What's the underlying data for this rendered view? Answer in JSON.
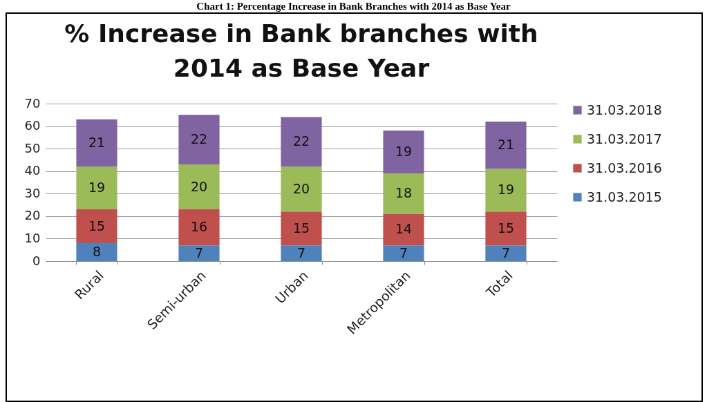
{
  "chart_data": {
    "type": "bar",
    "title": "% Increase in Bank branches with 2014 as Base Year",
    "annotations": [
      "Chart 1: Percentage Increase in Bank Branches with 2014 as Base Year"
    ],
    "categories": [
      "Rural",
      "Semi-urban",
      "Urban",
      "Metropolitan",
      "Total"
    ],
    "stacked": true,
    "series": [
      {
        "name": "31.03.2015",
        "color": "#4f81bd",
        "values": [
          8,
          7,
          7,
          7,
          7
        ]
      },
      {
        "name": "31.03.2016",
        "color": "#c0504d",
        "values": [
          15,
          16,
          15,
          14,
          15
        ]
      },
      {
        "name": "31.03.2017",
        "color": "#9bbb59",
        "values": [
          19,
          20,
          20,
          18,
          19
        ]
      },
      {
        "name": "31.03.2018",
        "color": "#8064a2",
        "values": [
          21,
          22,
          22,
          19,
          21
        ]
      }
    ],
    "ylim": [
      0,
      70
    ],
    "yticks": [
      0,
      10,
      20,
      30,
      40,
      50,
      60,
      70
    ],
    "grid": "y",
    "legend": "right",
    "data_labels": true
  }
}
